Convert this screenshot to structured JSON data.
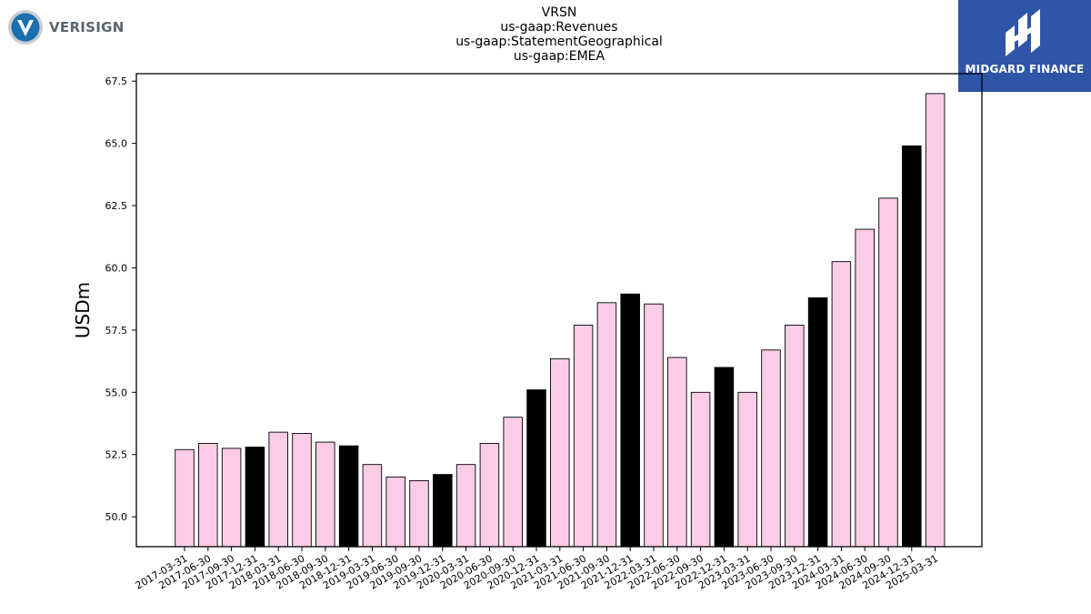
{
  "logos": {
    "left": {
      "wordmark": "VERISIGN",
      "icon": "verisign-v-icon",
      "colors": {
        "circle": "#1a6fae",
        "ring": "#c9ccd0",
        "text": "#5a6670"
      }
    },
    "right": {
      "name": "MIDGARD FINANCE",
      "icon": "midgard-m-icon",
      "colors": {
        "background": "#2f55a8",
        "text": "#ffffff"
      }
    }
  },
  "chart_data": {
    "type": "bar",
    "title_lines": [
      "VRSN",
      "us-gaap:Revenues",
      "us-gaap:StatementGeographical",
      "us-gaap:EMEA"
    ],
    "xlabel": "",
    "ylabel": "USDm",
    "ylim": [
      48.8,
      67.8
    ],
    "yticks": [
      50.0,
      52.5,
      55.0,
      57.5,
      60.0,
      62.5,
      65.0,
      67.5
    ],
    "ytick_labels": [
      "50.0",
      "52.5",
      "55.0",
      "57.5",
      "60.0",
      "62.5",
      "65.0",
      "67.5"
    ],
    "grid": false,
    "colors": {
      "quarter": "#fbcce5",
      "year_end": "#000000",
      "edge": "#000000"
    },
    "categories": [
      "2017-03-31",
      "2017-06-30",
      "2017-09-30",
      "2017-12-31",
      "2018-03-31",
      "2018-06-30",
      "2018-09-30",
      "2018-12-31",
      "2019-03-31",
      "2019-06-30",
      "2019-09-30",
      "2019-12-31",
      "2020-03-31",
      "2020-06-30",
      "2020-09-30",
      "2020-12-31",
      "2021-03-31",
      "2021-06-30",
      "2021-09-30",
      "2021-12-31",
      "2022-03-31",
      "2022-06-30",
      "2022-09-30",
      "2022-12-31",
      "2023-03-31",
      "2023-06-30",
      "2023-09-30",
      "2023-12-31",
      "2024-03-31",
      "2024-06-30",
      "2024-09-30",
      "2024-12-31",
      "2025-03-31"
    ],
    "values": [
      52.7,
      52.95,
      52.75,
      52.8,
      53.4,
      53.35,
      53.0,
      52.85,
      52.1,
      51.6,
      51.45,
      51.7,
      52.1,
      52.95,
      54.0,
      55.1,
      56.35,
      57.7,
      58.6,
      58.95,
      58.55,
      56.4,
      55.0,
      56.0,
      55.0,
      56.7,
      57.7,
      58.8,
      60.25,
      61.55,
      62.8,
      64.9,
      67.0
    ],
    "year_end": [
      false,
      false,
      false,
      true,
      false,
      false,
      false,
      true,
      false,
      false,
      false,
      true,
      false,
      false,
      false,
      true,
      false,
      false,
      false,
      true,
      false,
      false,
      false,
      true,
      false,
      false,
      false,
      true,
      false,
      false,
      false,
      true,
      false
    ]
  }
}
